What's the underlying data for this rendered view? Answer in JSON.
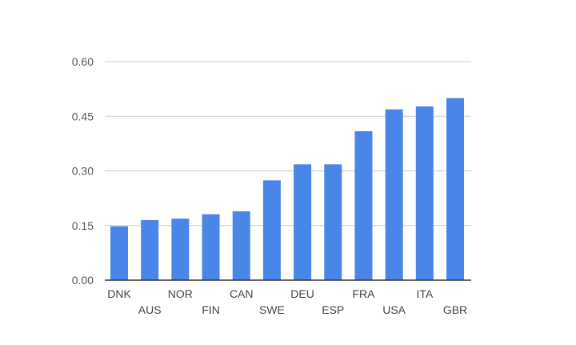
{
  "chart_data": {
    "type": "bar",
    "title": "",
    "xlabel": "",
    "ylabel": "",
    "categories": [
      "DNK",
      "AUS",
      "NOR",
      "FIN",
      "CAN",
      "SWE",
      "DEU",
      "ESP",
      "FRA",
      "USA",
      "ITA",
      "GBR"
    ],
    "values": [
      0.148,
      0.165,
      0.169,
      0.181,
      0.189,
      0.274,
      0.318,
      0.318,
      0.409,
      0.469,
      0.477,
      0.5
    ],
    "ylim": [
      0,
      0.6
    ],
    "yticks": [
      "0.00",
      "0.15",
      "0.30",
      "0.45",
      "0.60"
    ],
    "grid": true,
    "legend": "none",
    "colors": {
      "bar": "#4a86e8",
      "grid": "#cccccc",
      "axis": "#333333"
    }
  }
}
